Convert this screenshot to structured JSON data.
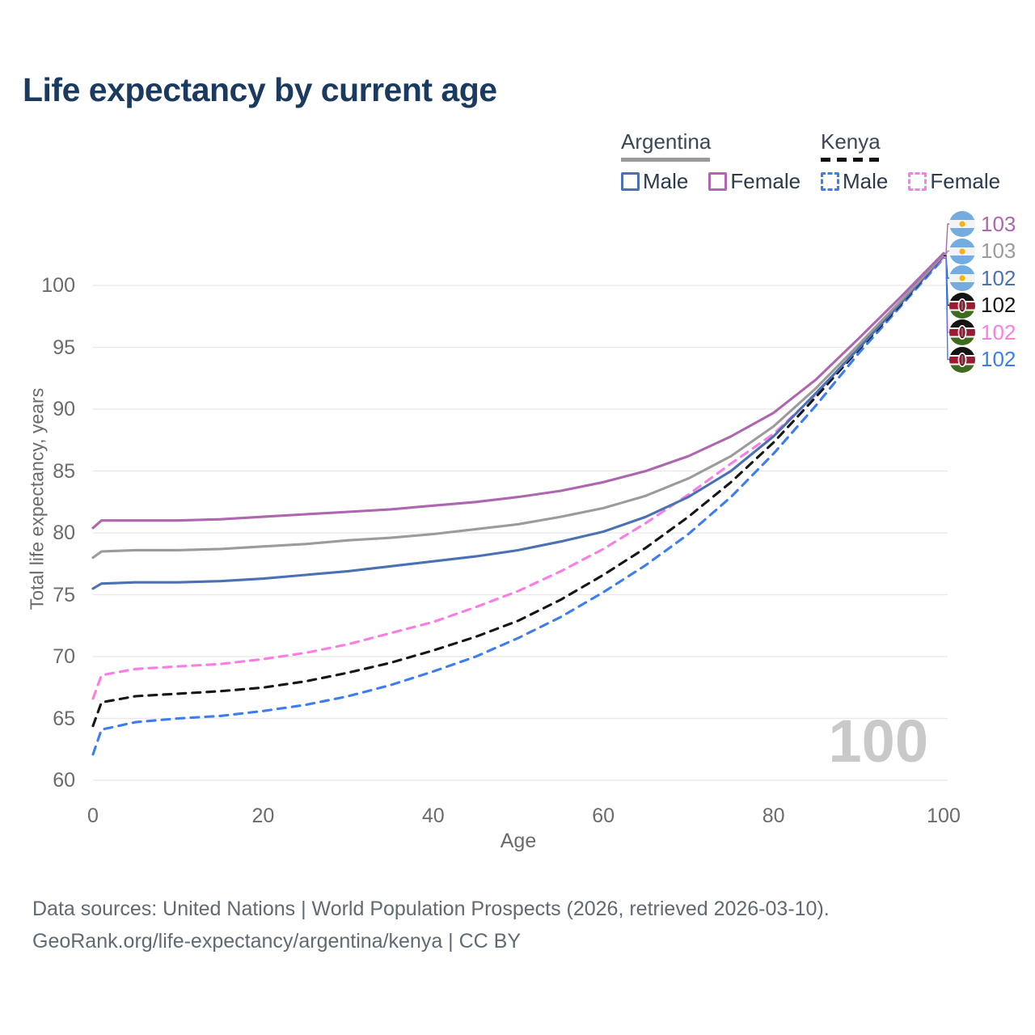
{
  "title": "Life expectancy by current age",
  "legend": {
    "groups": [
      {
        "label": "Argentina",
        "style": "solid",
        "items": [
          {
            "label": "Male",
            "series": "argentina-male"
          },
          {
            "label": "Female",
            "series": "argentina-female"
          }
        ]
      },
      {
        "label": "Kenya",
        "style": "dashed",
        "items": [
          {
            "label": "Male",
            "series": "kenya-male"
          },
          {
            "label": "Female",
            "series": "kenya-female"
          }
        ]
      }
    ]
  },
  "watermark": "100",
  "footer": {
    "line1": "Data sources: United Nations | World Population Prospects (2026, retrieved 2026-03-10).",
    "line2": "GeoRank.org/life-expectancy/argentina/kenya | CC BY"
  },
  "colors": {
    "grid": "#e8e8e8",
    "tick_text": "#6b6b6b",
    "watermark": "#c9c9c9",
    "title_text": "#1b3a5f"
  },
  "chart_data": {
    "type": "line",
    "title": "Life expectancy by current age",
    "xlabel": "Age",
    "ylabel": "Total life expectancy, years",
    "xlim": [
      0,
      100
    ],
    "ylim": [
      60,
      103.5
    ],
    "x_ticks": [
      0,
      20,
      40,
      60,
      80,
      100
    ],
    "y_ticks": [
      60,
      65,
      70,
      75,
      80,
      85,
      90,
      95,
      100
    ],
    "grid": "horizontal-only",
    "legend_position": "top-right",
    "ages": [
      0,
      1,
      5,
      10,
      15,
      20,
      25,
      30,
      35,
      40,
      45,
      50,
      55,
      60,
      65,
      70,
      75,
      80,
      85,
      90,
      95,
      100
    ],
    "series": [
      {
        "key": "kenya-male",
        "name": "Kenya Male",
        "country": "kenya",
        "sex": "male",
        "color": "#3d7df0",
        "dash": "dashed",
        "values": [
          62.1,
          64.1,
          64.7,
          65.0,
          65.2,
          65.6,
          66.1,
          66.8,
          67.7,
          68.8,
          70.0,
          71.5,
          73.2,
          75.2,
          77.4,
          79.9,
          82.9,
          86.4,
          90.3,
          94.5,
          98.35,
          102.2
        ]
      },
      {
        "key": "kenya-female",
        "name": "Kenya Female",
        "country": "kenya",
        "sex": "female",
        "color": "#fa7de4",
        "dash": "dashed",
        "values": [
          66.6,
          68.5,
          69.0,
          69.2,
          69.4,
          69.8,
          70.3,
          71.0,
          71.9,
          72.8,
          74.0,
          75.3,
          76.9,
          78.7,
          80.8,
          83.1,
          85.6,
          88.0,
          91.2,
          95.0,
          98.55,
          102.3
        ]
      },
      {
        "key": "kenya-total",
        "name": "Kenya (both sexes)",
        "country": "kenya",
        "sex": "total",
        "color": "#161616",
        "dash": "dashed",
        "values": [
          64.4,
          66.3,
          66.8,
          67.0,
          67.2,
          67.5,
          68.0,
          68.7,
          69.5,
          70.5,
          71.6,
          72.9,
          74.6,
          76.6,
          78.8,
          81.3,
          84.1,
          87.3,
          91.0,
          94.8,
          98.5,
          102.4
        ]
      },
      {
        "key": "argentina-male",
        "name": "Argentina Male",
        "country": "argentina",
        "sex": "male",
        "color": "#4a71b3",
        "dash": "solid",
        "values": [
          75.5,
          75.9,
          76.0,
          76.0,
          76.1,
          76.3,
          76.6,
          76.9,
          77.3,
          77.7,
          78.1,
          78.6,
          79.3,
          80.1,
          81.3,
          82.9,
          85.0,
          87.8,
          91.3,
          94.9,
          98.6,
          102.4
        ]
      },
      {
        "key": "argentina-total",
        "name": "Argentina (both sexes)",
        "country": "argentina",
        "sex": "total",
        "color": "#9b9b9b",
        "dash": "solid",
        "values": [
          78.0,
          78.5,
          78.6,
          78.6,
          78.7,
          78.9,
          79.1,
          79.4,
          79.6,
          79.9,
          80.3,
          80.7,
          81.3,
          82.0,
          83.0,
          84.4,
          86.2,
          88.6,
          91.7,
          95.2,
          98.8,
          102.5
        ]
      },
      {
        "key": "argentina-female",
        "name": "Argentina Female",
        "country": "argentina",
        "sex": "female",
        "color": "#ae66ae",
        "dash": "solid",
        "values": [
          80.4,
          81.0,
          81.0,
          81.0,
          81.1,
          81.3,
          81.5,
          81.7,
          81.9,
          82.2,
          82.5,
          82.9,
          83.4,
          84.1,
          85.0,
          86.2,
          87.8,
          89.7,
          92.4,
          95.7,
          99.1,
          102.6
        ]
      }
    ],
    "end_labels": [
      {
        "series": "argentina-female",
        "value": "103"
      },
      {
        "series": "argentina-total",
        "value": "103"
      },
      {
        "series": "argentina-male",
        "value": "102"
      },
      {
        "series": "kenya-total",
        "value": "102"
      },
      {
        "series": "kenya-female",
        "value": "102"
      },
      {
        "series": "kenya-male",
        "value": "102"
      }
    ]
  }
}
